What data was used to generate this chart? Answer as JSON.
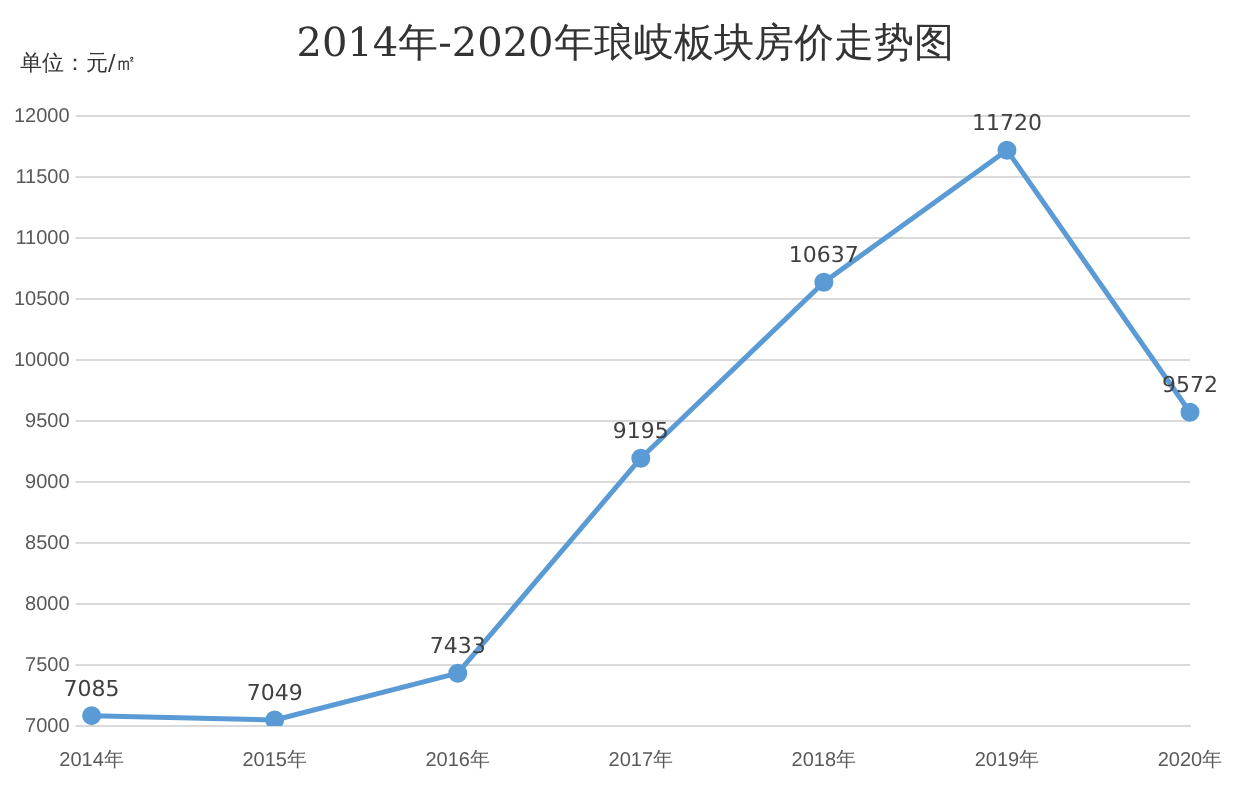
{
  "chart_data": {
    "type": "line",
    "title": "2014年-2020年琅岐板块房价走势图",
    "ylabel": "单位：元/㎡",
    "categories": [
      "2014年",
      "2015年",
      "2016年",
      "2017年",
      "2018年",
      "2019年",
      "2020年"
    ],
    "series": [
      {
        "color": "#5b9bd5",
        "values": [
          7085,
          7049,
          7433,
          9195,
          10637,
          11720,
          9572
        ]
      }
    ],
    "ylim": [
      7000,
      12000
    ],
    "yticks": [
      7000,
      7500,
      8000,
      8500,
      9000,
      9500,
      10000,
      10500,
      11000,
      11500,
      12000
    ],
    "grid": "y",
    "marker": "circle",
    "data_labels": true,
    "legend": false
  }
}
